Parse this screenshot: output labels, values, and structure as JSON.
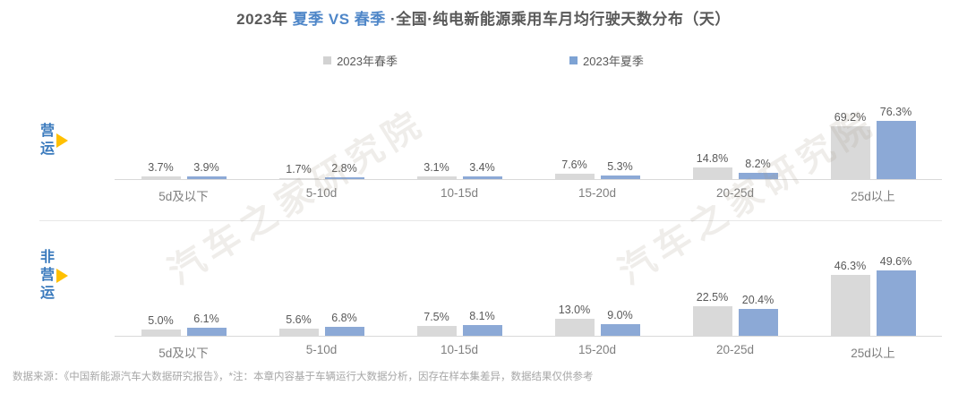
{
  "title": {
    "prefix": "2023年 ",
    "highlight": "夏季 VS 春季",
    "suffix": " ·全国·纯电新能源乘用车月均行驶天数分布（天）"
  },
  "legend": [
    {
      "label": "2023年春季",
      "color": "#d2d2d2"
    },
    {
      "label": "2023年夏季",
      "color": "#7ea3d4"
    }
  ],
  "watermark": "汽车之家研究院",
  "footer": "数据来源：《中国新能源汽车大数据研究报告》，*注：本章内容基于车辆运行大数据分析，因存在样本集差异，数据结果仅供参考",
  "chart_data": {
    "type": "bar",
    "title": "2023年 夏季 VS 春季 ·全国·纯电新能源乘用车月均行驶天数分布（天）",
    "unit": "%",
    "categories": [
      "5d及以下",
      "5-10d",
      "10-15d",
      "15-20d",
      "20-25d",
      "25d以上"
    ],
    "bar_colors": [
      "#d9d9d9",
      "#8ca9d6"
    ],
    "legend_position": "top",
    "grid": false,
    "value_labels": true,
    "rows": [
      {
        "label": "营运",
        "series": [
          {
            "name": "2023年春季",
            "values": [
              3.7,
              1.7,
              3.1,
              7.6,
              14.8,
              69.2
            ]
          },
          {
            "name": "2023年夏季",
            "values": [
              3.9,
              2.8,
              3.4,
              5.3,
              8.2,
              76.3
            ]
          }
        ]
      },
      {
        "label": "非营运",
        "series": [
          {
            "name": "2023年春季",
            "values": [
              5.0,
              5.6,
              7.5,
              13.0,
              22.5,
              46.3
            ]
          },
          {
            "name": "2023年夏季",
            "values": [
              6.1,
              6.8,
              8.1,
              9.0,
              20.4,
              49.6
            ]
          }
        ]
      }
    ]
  }
}
